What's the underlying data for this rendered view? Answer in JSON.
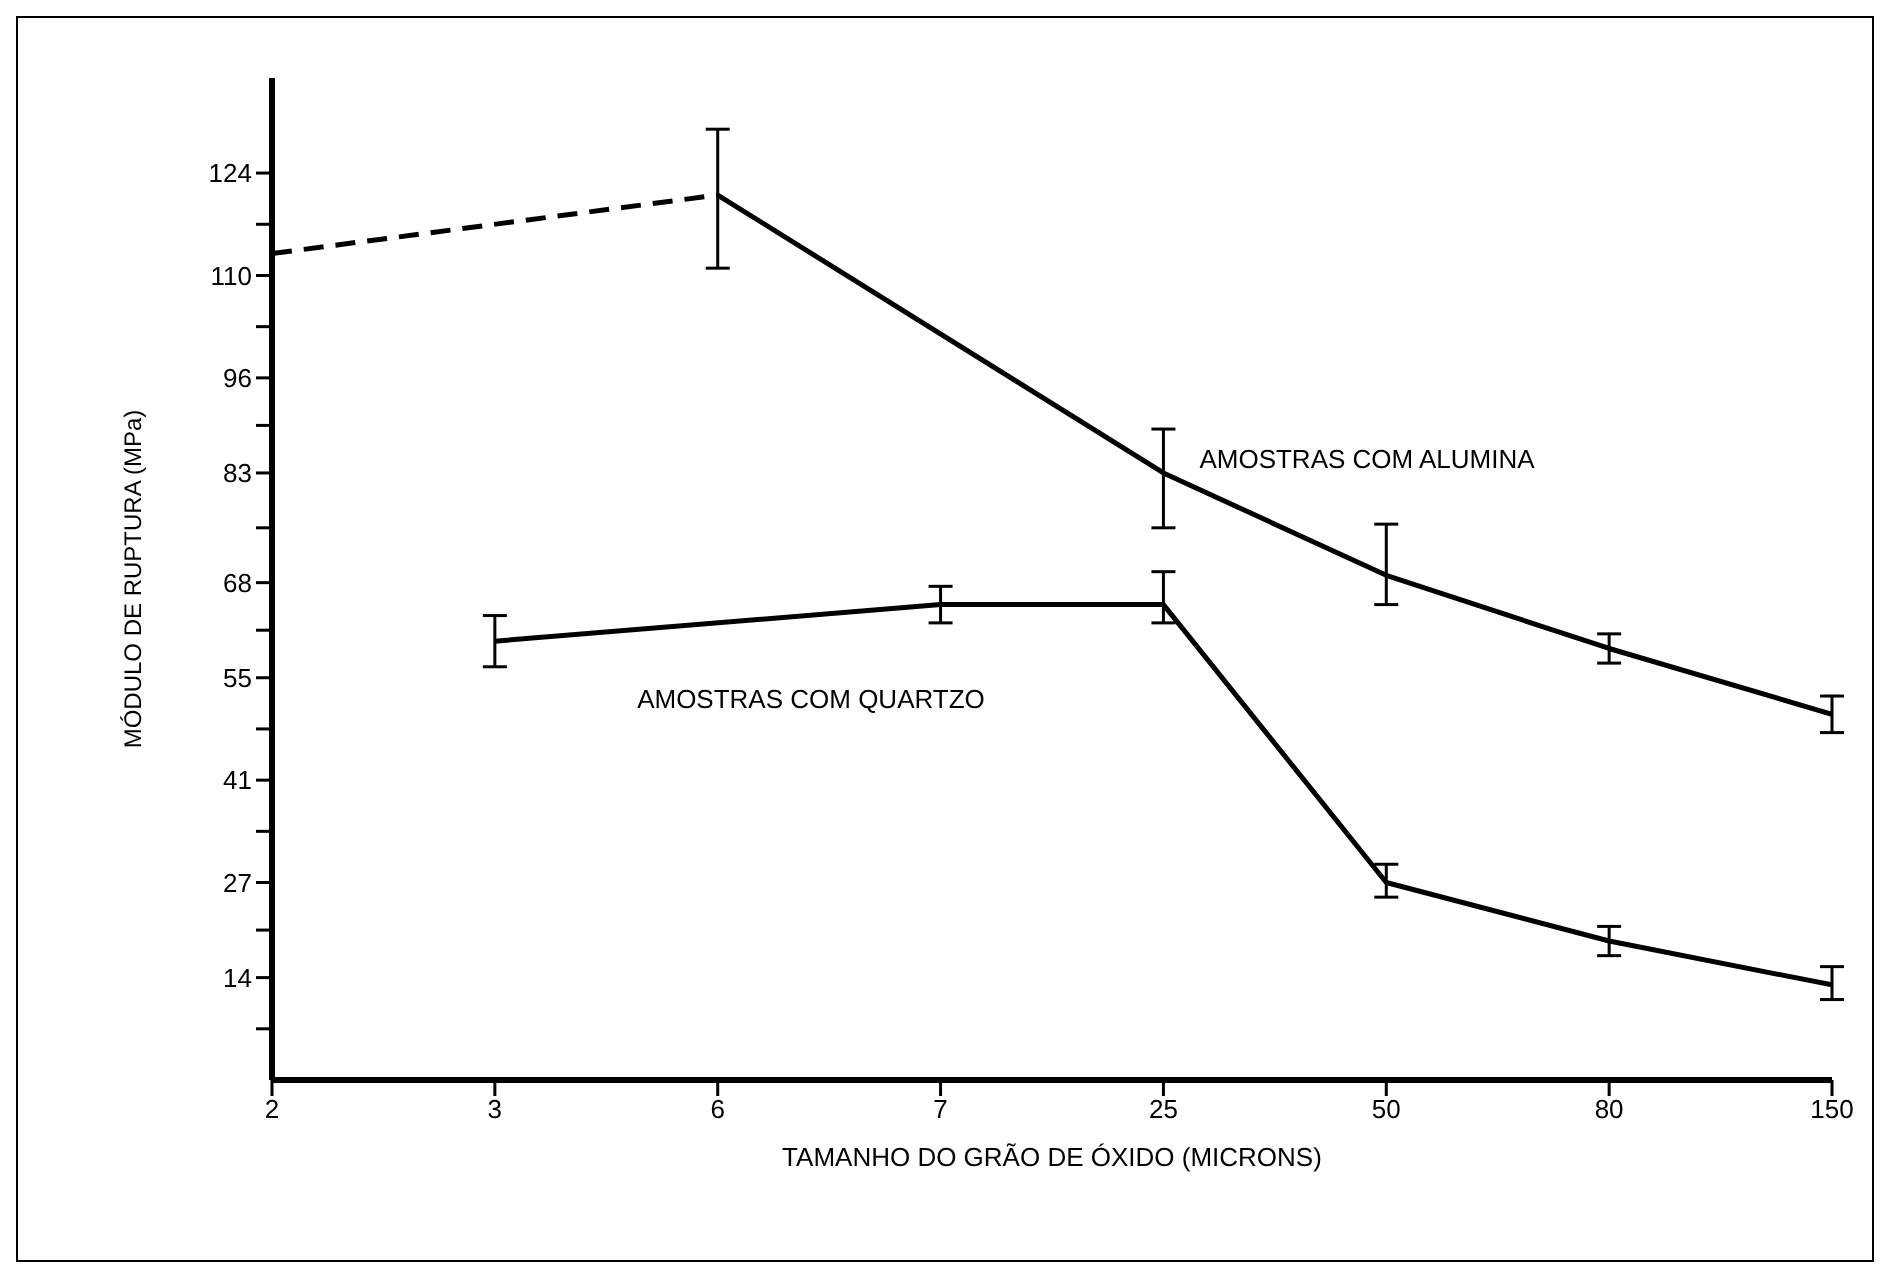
{
  "chart_data": {
    "type": "line",
    "xlabel": "TAMANHO DO GRÃO DE ÓXIDO (MICRONS)",
    "ylabel": "MÓDULO DE RUPTURA  (MPa)",
    "categories": [
      "2",
      "3",
      "6",
      "7",
      "25",
      "50",
      "80",
      "150"
    ],
    "ylim": [
      0,
      137
    ],
    "yticks": [
      {
        "value": 7,
        "label": null
      },
      14,
      {
        "value": 20.5,
        "label": null
      },
      27,
      {
        "value": 34,
        "label": null
      },
      41,
      {
        "value": 48,
        "label": null
      },
      55,
      {
        "value": 61.5,
        "label": null
      },
      68,
      {
        "value": 75.5,
        "label": null
      },
      83,
      {
        "value": 89.5,
        "label": null
      },
      96,
      {
        "value": 103,
        "label": null
      },
      110,
      {
        "value": 117,
        "label": null
      },
      124
    ],
    "series": [
      {
        "color": "#000000",
        "line_style": "dashed",
        "values": [
          113,
          null,
          121,
          null,
          null,
          null,
          null,
          null
        ]
      },
      {
        "name": "AMOSTRAS COM ALUMINA",
        "color": "#000000",
        "line_style": "solid",
        "values": [
          null,
          null,
          121,
          null,
          83,
          69,
          59,
          50
        ],
        "errors": [
          null,
          null,
          [
            111,
            130
          ],
          null,
          [
            75.5,
            89
          ],
          [
            65,
            76
          ],
          [
            57,
            61
          ],
          [
            47.5,
            52.5
          ]
        ]
      },
      {
        "name": "AMOSTRAS COM QUARTZO",
        "color": "#000000",
        "line_style": "solid",
        "values": [
          null,
          60,
          null,
          65,
          65,
          27,
          19,
          13
        ],
        "errors": [
          null,
          [
            56.5,
            63.5
          ],
          null,
          [
            62.5,
            67.5
          ],
          [
            62.5,
            69.5
          ],
          [
            25,
            29.5
          ],
          [
            17,
            21
          ],
          [
            11,
            15.5
          ]
        ]
      }
    ],
    "marker": "none",
    "grid": false,
    "legend": false
  }
}
